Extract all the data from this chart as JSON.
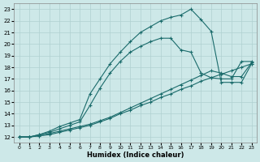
{
  "xlabel": "Humidex (Indice chaleur)",
  "xlim": [
    -0.5,
    23.5
  ],
  "ylim": [
    11.5,
    23.5
  ],
  "xticks": [
    0,
    1,
    2,
    3,
    4,
    5,
    6,
    7,
    8,
    9,
    10,
    11,
    12,
    13,
    14,
    15,
    16,
    17,
    18,
    19,
    20,
    21,
    22,
    23
  ],
  "yticks": [
    12,
    13,
    14,
    15,
    16,
    17,
    18,
    19,
    20,
    21,
    22,
    23
  ],
  "background_color": "#cde8e8",
  "grid_color": "#b0d0d0",
  "line_color": "#1a6b6b",
  "line1_x": [
    0,
    1,
    2,
    3,
    4,
    5,
    6,
    7,
    8,
    9,
    10,
    11,
    12,
    13,
    14,
    15,
    16,
    17,
    18,
    19,
    20,
    21,
    22,
    23
  ],
  "line1_y": [
    12,
    12,
    12.1,
    12.2,
    12.4,
    12.6,
    12.8,
    13.0,
    13.3,
    13.6,
    14.0,
    14.3,
    14.7,
    15.0,
    15.4,
    15.7,
    16.1,
    16.4,
    16.8,
    17.1,
    17.4,
    17.7,
    18.0,
    18.3
  ],
  "line2_x": [
    0,
    1,
    2,
    3,
    4,
    5,
    6,
    7,
    8,
    9,
    10,
    11,
    12,
    13,
    14,
    15,
    16,
    17,
    18,
    19,
    20,
    21,
    22,
    23
  ],
  "line2_y": [
    12,
    12,
    12.1,
    12.3,
    12.5,
    12.7,
    12.9,
    13.1,
    13.4,
    13.7,
    14.1,
    14.5,
    14.9,
    15.3,
    15.7,
    16.1,
    16.5,
    16.9,
    17.3,
    17.7,
    17.5,
    17.2,
    17.2,
    18.4
  ],
  "line3_x": [
    0,
    1,
    2,
    3,
    4,
    5,
    6,
    7,
    8,
    9,
    10,
    11,
    12,
    13,
    14,
    15,
    16,
    17,
    18,
    19,
    20,
    21,
    22,
    23
  ],
  "line3_y": [
    12,
    12,
    12.2,
    12.4,
    12.7,
    13.0,
    13.3,
    14.7,
    16.2,
    17.5,
    18.5,
    19.3,
    19.8,
    20.2,
    20.5,
    20.5,
    19.5,
    19.3,
    17.5,
    17.1,
    17.0,
    17.0,
    18.5,
    18.5
  ],
  "line4_x": [
    0,
    1,
    2,
    3,
    4,
    5,
    6,
    7,
    8,
    9,
    10,
    11,
    12,
    13,
    14,
    15,
    16,
    17,
    18,
    19,
    20,
    21,
    22,
    23
  ],
  "line4_y": [
    12,
    12,
    12.2,
    12.5,
    12.9,
    13.2,
    13.5,
    15.7,
    17.0,
    18.3,
    19.3,
    20.2,
    21.0,
    21.5,
    22.0,
    22.3,
    22.5,
    23.0,
    22.1,
    21.1,
    16.7,
    16.7,
    16.7,
    18.3
  ]
}
